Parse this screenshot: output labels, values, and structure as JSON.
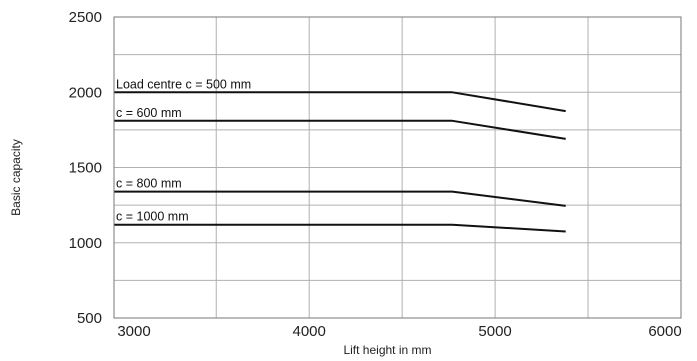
{
  "chart_data": {
    "type": "line",
    "title": "",
    "xlabel": "Lift height in mm",
    "ylabel": "Basic capacity",
    "xlim": [
      2950,
      6000
    ],
    "ylim": [
      500,
      2500
    ],
    "xticks": [
      3000,
      4000,
      5000,
      6000
    ],
    "yticks": [
      500,
      1000,
      1500,
      2000,
      2500
    ],
    "grid": true,
    "legend": "none",
    "line_color": "#111111",
    "grid_color": "#b0b0b0",
    "series": [
      {
        "name": "Load centre c = 500 mm",
        "x": [
          2950,
          4770,
          5380
        ],
        "y": [
          2000,
          2000,
          1875
        ]
      },
      {
        "name": "c = 600 mm",
        "x": [
          2950,
          4770,
          5380
        ],
        "y": [
          1810,
          1810,
          1690
        ]
      },
      {
        "name": "c = 800 mm",
        "x": [
          2950,
          4770,
          5380
        ],
        "y": [
          1340,
          1340,
          1245
        ]
      },
      {
        "name": "c = 1000 mm",
        "x": [
          2950,
          4770,
          5380
        ],
        "y": [
          1120,
          1120,
          1075
        ]
      }
    ]
  }
}
